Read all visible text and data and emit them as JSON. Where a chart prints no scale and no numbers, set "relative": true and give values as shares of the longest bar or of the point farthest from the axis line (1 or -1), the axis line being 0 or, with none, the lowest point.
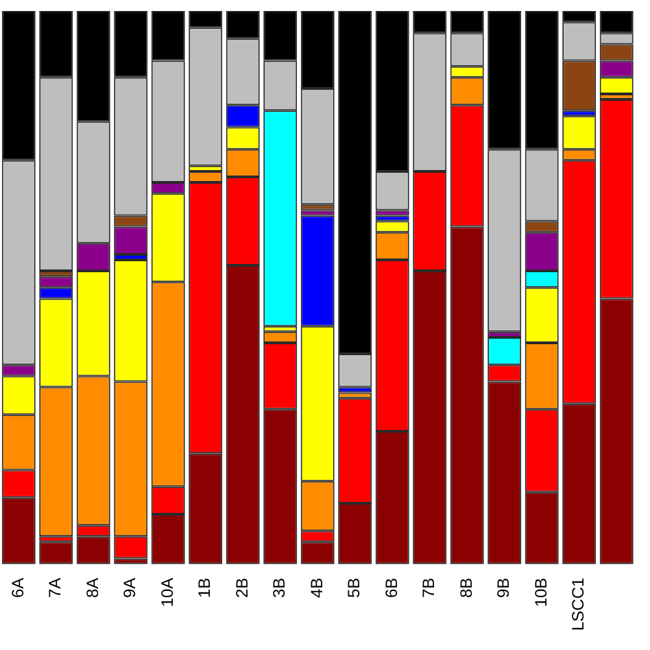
{
  "chart_data": {
    "type": "bar",
    "stacked": true,
    "relative": true,
    "grid": false,
    "legend": false,
    "categories": [
      "6A",
      "7A",
      "8A",
      "9A",
      "10A",
      "1B",
      "2B",
      "3B",
      "4B",
      "5B",
      "6B",
      "7B",
      "8B",
      "9B",
      "10B",
      "LSCC1",
      null
    ],
    "series": [
      {
        "color": "#8b0000",
        "values": [
          0.12,
          0.04,
          0.05,
          0.01,
          0.09,
          0.2,
          0.54,
          0.28,
          0.04,
          0.11,
          0.24,
          0.53,
          0.61,
          0.33,
          0.13,
          0.29,
          0.48
        ]
      },
      {
        "color": "#ff0000",
        "values": [
          0.05,
          0.01,
          0.02,
          0.04,
          0.05,
          0.49,
          0.16,
          0.12,
          0.02,
          0.19,
          0.31,
          0.18,
          0.22,
          0.03,
          0.15,
          0.44,
          0.36
        ]
      },
      {
        "color": "#ff8c00",
        "values": [
          0.1,
          0.27,
          0.27,
          0.28,
          0.37,
          0.02,
          0.05,
          0.02,
          0.09,
          0.01,
          0.05,
          null,
          0.05,
          null,
          0.12,
          0.02,
          0.01
        ]
      },
      {
        "color": "#ffff00",
        "values": [
          0.07,
          0.16,
          0.19,
          0.22,
          0.16,
          0.01,
          0.04,
          0.01,
          0.28,
          null,
          0.02,
          null,
          0.02,
          null,
          0.1,
          0.06,
          0.03
        ]
      },
      {
        "color": "#00ffff",
        "values": [
          null,
          null,
          null,
          null,
          null,
          null,
          null,
          0.39,
          null,
          null,
          null,
          null,
          null,
          0.05,
          0.03,
          null,
          null
        ]
      },
      {
        "color": "#0000ff",
        "values": [
          null,
          0.02,
          null,
          0.01,
          null,
          null,
          0.04,
          null,
          0.2,
          0.01,
          0.01,
          null,
          null,
          null,
          null,
          0.01,
          null
        ]
      },
      {
        "color": "#8b008b",
        "values": [
          0.02,
          0.02,
          0.05,
          0.05,
          0.02,
          null,
          null,
          null,
          0.01,
          null,
          0.01,
          null,
          null,
          0.01,
          0.07,
          null,
          0.03
        ]
      },
      {
        "color": "#8b4513",
        "values": [
          null,
          0.01,
          null,
          0.02,
          null,
          null,
          null,
          null,
          0.01,
          null,
          null,
          null,
          null,
          null,
          0.02,
          0.09,
          0.03
        ]
      },
      {
        "color": "#bebebe",
        "values": [
          0.37,
          0.35,
          0.22,
          0.25,
          0.22,
          0.25,
          0.12,
          0.09,
          0.21,
          0.06,
          0.07,
          0.25,
          0.06,
          0.33,
          0.13,
          0.07,
          0.02
        ]
      },
      {
        "color": "#000000",
        "values": [
          0.27,
          0.12,
          0.2,
          0.12,
          0.09,
          0.03,
          0.05,
          0.09,
          0.14,
          0.62,
          0.29,
          0.04,
          0.04,
          0.25,
          0.25,
          0.02,
          0.04
        ]
      }
    ]
  }
}
